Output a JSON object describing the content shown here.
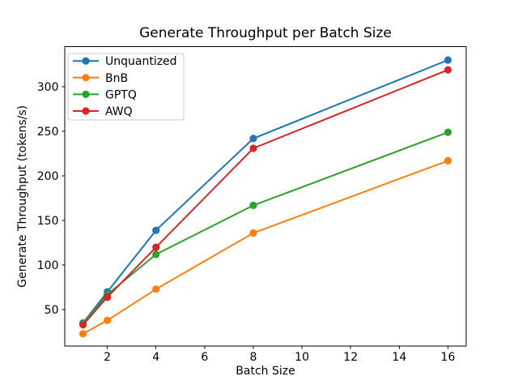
{
  "chart_data": {
    "type": "line",
    "title": "Generate Throughput per Batch Size",
    "xlabel": "Batch Size",
    "ylabel": "Generate Throughput (tokens/s)",
    "x": [
      1,
      2,
      4,
      8,
      16
    ],
    "series": [
      {
        "name": "Unquantized",
        "color": "#1f77b4",
        "values": [
          35,
          70,
          139,
          242,
          330
        ]
      },
      {
        "name": "BnB",
        "color": "#ff7f0e",
        "values": [
          23,
          38,
          73,
          136,
          217
        ]
      },
      {
        "name": "GPTQ",
        "color": "#2ca02c",
        "values": [
          34,
          67,
          112,
          167,
          249
        ]
      },
      {
        "name": "AWQ",
        "color": "#d62728",
        "values": [
          33,
          64,
          120,
          231,
          319
        ]
      }
    ],
    "xticks": [
      2,
      4,
      6,
      8,
      10,
      12,
      14,
      16
    ],
    "yticks": [
      50,
      100,
      150,
      200,
      250,
      300
    ],
    "xlim": [
      0.25,
      16.75
    ],
    "ylim": [
      9,
      345
    ],
    "legend_position": "upper left",
    "grid": false,
    "frame_color": "#000000",
    "legend_border_color": "#cccccc",
    "background_color": "#ffffff"
  }
}
